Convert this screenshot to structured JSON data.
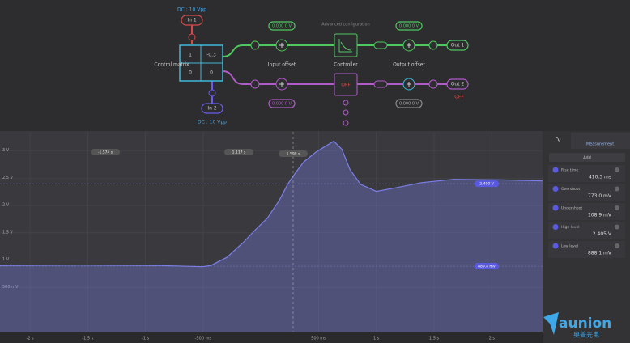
{
  "diagram": {
    "input1": {
      "label": "In 1",
      "coupling": "DC : 10 Vpp"
    },
    "input2": {
      "label": "In 2",
      "coupling": "DC : 10 Vpp"
    },
    "matrix": {
      "title": "Control matrix",
      "cells": [
        "1",
        "-0.3",
        "0",
        "0"
      ]
    },
    "channel1": {
      "input_offset": "0.000 0 V",
      "input_offset_label": "Input offset",
      "controller_note": "Advanced configuration",
      "controller_label": "Controller",
      "output_offset": "0.000 0 V",
      "output_offset_label": "Output offset",
      "output": "Out 1"
    },
    "channel2": {
      "input_offset": "0.000 0 V",
      "controller": "OFF",
      "output_offset": "0.000 0 V",
      "output": "Out 2",
      "output_state": "OFF"
    }
  },
  "chart_data": {
    "type": "area",
    "color": "#7b7fe8",
    "x": [
      -2.26,
      -1.56,
      -0.86,
      -0.505,
      -0.435,
      -0.295,
      -0.154,
      -0.05,
      0.056,
      0.161,
      0.232,
      0.3,
      0.372,
      0.477,
      0.547,
      0.632,
      0.702,
      0.772,
      0.863,
      1.0,
      1.18,
      1.39,
      1.67,
      2.09,
      2.44
    ],
    "values": [
      0.9,
      0.91,
      0.9,
      0.88,
      0.9,
      1.05,
      1.32,
      1.55,
      1.77,
      2.1,
      2.39,
      2.6,
      2.8,
      2.98,
      3.07,
      3.18,
      3.03,
      2.66,
      2.39,
      2.26,
      2.33,
      2.42,
      2.48,
      2.47,
      2.45
    ],
    "xlim": [
      -2.26,
      2.44
    ],
    "ylim": [
      -0.31,
      3.35
    ],
    "xticks": [
      {
        "value": -2,
        "label": "-2 s"
      },
      {
        "value": -1.5,
        "label": "-1.5 s"
      },
      {
        "value": -1,
        "label": "-1 s"
      },
      {
        "value": -0.5,
        "label": "-500 ms"
      },
      {
        "value": 0.5,
        "label": "500 ms"
      },
      {
        "value": 1,
        "label": "1 s"
      },
      {
        "value": 1.5,
        "label": "1.5 s"
      },
      {
        "value": 2,
        "label": "2 s"
      }
    ],
    "yticks": [
      {
        "value": 0.5,
        "label": "500 mV"
      },
      {
        "value": 1,
        "label": "1 V"
      },
      {
        "value": 1.5,
        "label": "1.5 V"
      },
      {
        "value": 2,
        "label": "2 V"
      },
      {
        "value": 2.5,
        "label": "2.5 V"
      },
      {
        "value": 3,
        "label": "3 V"
      }
    ],
    "grid": true,
    "cursor_labels": [
      "-1.574 s",
      "1.117 s",
      "1.599 s"
    ],
    "y_cursors": [
      {
        "value": 2.4,
        "label": "2.400 V"
      },
      {
        "value": 0.8894,
        "label": "889.4 mV"
      }
    ]
  },
  "panel": {
    "tab": "Measurement",
    "add": "Add",
    "measurements": [
      {
        "name": "Rise time",
        "value": "410.3 ms"
      },
      {
        "name": "Overshoot",
        "value": "773.0 mV"
      },
      {
        "name": "Undershoot",
        "value": "108.9 mV"
      },
      {
        "name": "High level",
        "value": "2.405 V"
      },
      {
        "name": "Low level",
        "value": "888.1 mV"
      }
    ]
  },
  "logo": {
    "brand": "aunion",
    "subtitle": "奥普光电"
  }
}
